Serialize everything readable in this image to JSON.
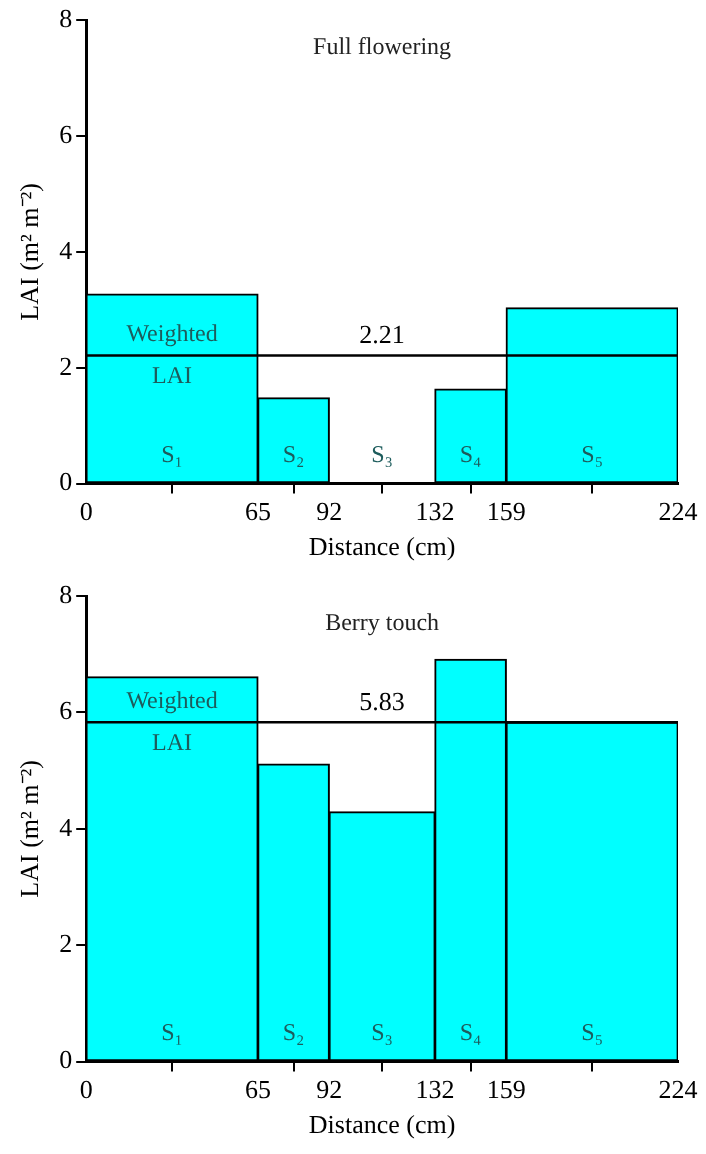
{
  "chart_data": [
    {
      "type": "histogram",
      "title": "Full flowering",
      "xlabel": "Distance (cm)",
      "ylabel": "LAI (m² m⁻²)",
      "color": "#00ffff",
      "bins": [
        0,
        65,
        92,
        132,
        159,
        224
      ],
      "values": [
        3.27,
        1.48,
        0,
        1.63,
        3.03
      ],
      "xlim": [
        0,
        224
      ],
      "xticks": [
        0,
        65,
        92,
        132,
        159,
        224
      ],
      "ylim": [
        0,
        8
      ],
      "yticks": [
        0,
        2,
        4,
        6,
        8
      ],
      "ref_lines": [
        {
          "axis": "y",
          "value": 2.21,
          "label": "2.21"
        }
      ],
      "annotations": [
        {
          "text": "Weighted LAI",
          "x": 32.5,
          "y": 2.21
        },
        "S₁",
        "S₂",
        "S₃",
        "S₄",
        "S₅"
      ],
      "grid": false,
      "legend": false
    },
    {
      "type": "histogram",
      "title": "Berry touch",
      "xlabel": "Distance (cm)",
      "ylabel": "LAI (m² m⁻²)",
      "color": "#00ffff",
      "bins": [
        0,
        65,
        92,
        132,
        159,
        224
      ],
      "values": [
        6.61,
        5.11,
        4.29,
        6.91,
        5.83
      ],
      "xlim": [
        0,
        224
      ],
      "xticks": [
        0,
        65,
        92,
        132,
        159,
        224
      ],
      "ylim": [
        0,
        8
      ],
      "yticks": [
        0,
        2,
        4,
        6,
        8
      ],
      "ref_lines": [
        {
          "axis": "y",
          "value": 5.83,
          "label": "5.83"
        }
      ],
      "annotations": [
        {
          "text": "Weighted LAI",
          "x": 32.5,
          "y": 5.83
        },
        "S₁",
        "S₂",
        "S₃",
        "S₄",
        "S₅"
      ],
      "grid": false,
      "legend": false
    }
  ]
}
